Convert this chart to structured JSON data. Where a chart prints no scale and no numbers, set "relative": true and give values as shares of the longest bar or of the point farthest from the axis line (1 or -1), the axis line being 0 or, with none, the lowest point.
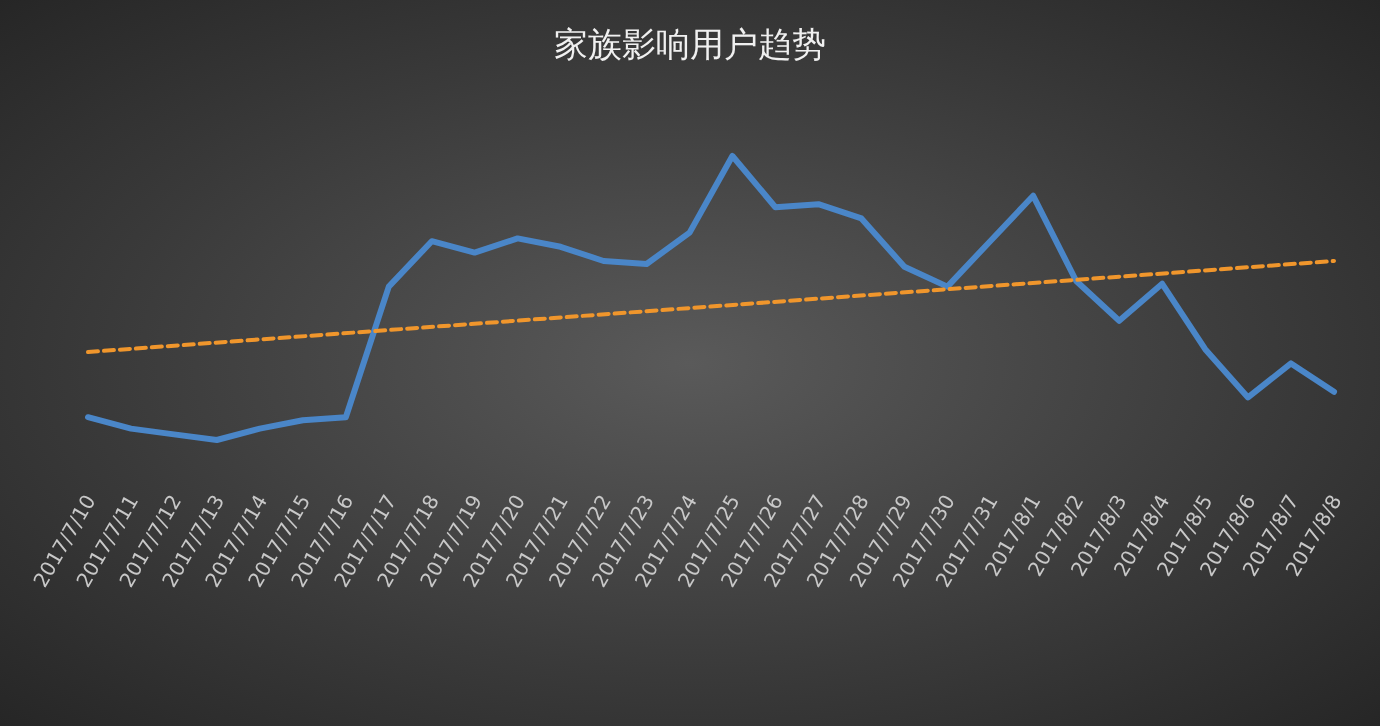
{
  "chart_data": {
    "type": "line",
    "title": "家族影响用户趋势",
    "relative": true,
    "categories": [
      "2017/7/10",
      "2017/7/11",
      "2017/7/12",
      "2017/7/13",
      "2017/7/14",
      "2017/7/15",
      "2017/7/16",
      "2017/7/17",
      "2017/7/18",
      "2017/7/19",
      "2017/7/20",
      "2017/7/21",
      "2017/7/22",
      "2017/7/23",
      "2017/7/24",
      "2017/7/25",
      "2017/7/26",
      "2017/7/27",
      "2017/7/28",
      "2017/7/29",
      "2017/7/30",
      "2017/7/31",
      "2017/8/1",
      "2017/8/2",
      "2017/8/3",
      "2017/8/4",
      "2017/8/5",
      "2017/8/6",
      "2017/8/7",
      "2017/8/8"
    ],
    "series": [
      {
        "color": "#4a86c8",
        "line_style": "solid",
        "values": [
          0.08,
          0.04,
          0.02,
          0,
          0.04,
          0.07,
          0.08,
          0.54,
          0.7,
          0.66,
          0.71,
          0.68,
          0.63,
          0.62,
          0.73,
          1,
          0.82,
          0.83,
          0.78,
          0.61,
          0.54,
          0.7,
          0.86,
          0.56,
          0.42,
          0.55,
          0.32,
          0.15,
          0.27,
          0.17
        ]
      },
      {
        "type": "line",
        "color": "#f0962c",
        "line_style": "dashed",
        "x": [
          "2017/7/10",
          "2017/8/8"
        ],
        "values": [
          0.31,
          0.63
        ]
      }
    ]
  }
}
